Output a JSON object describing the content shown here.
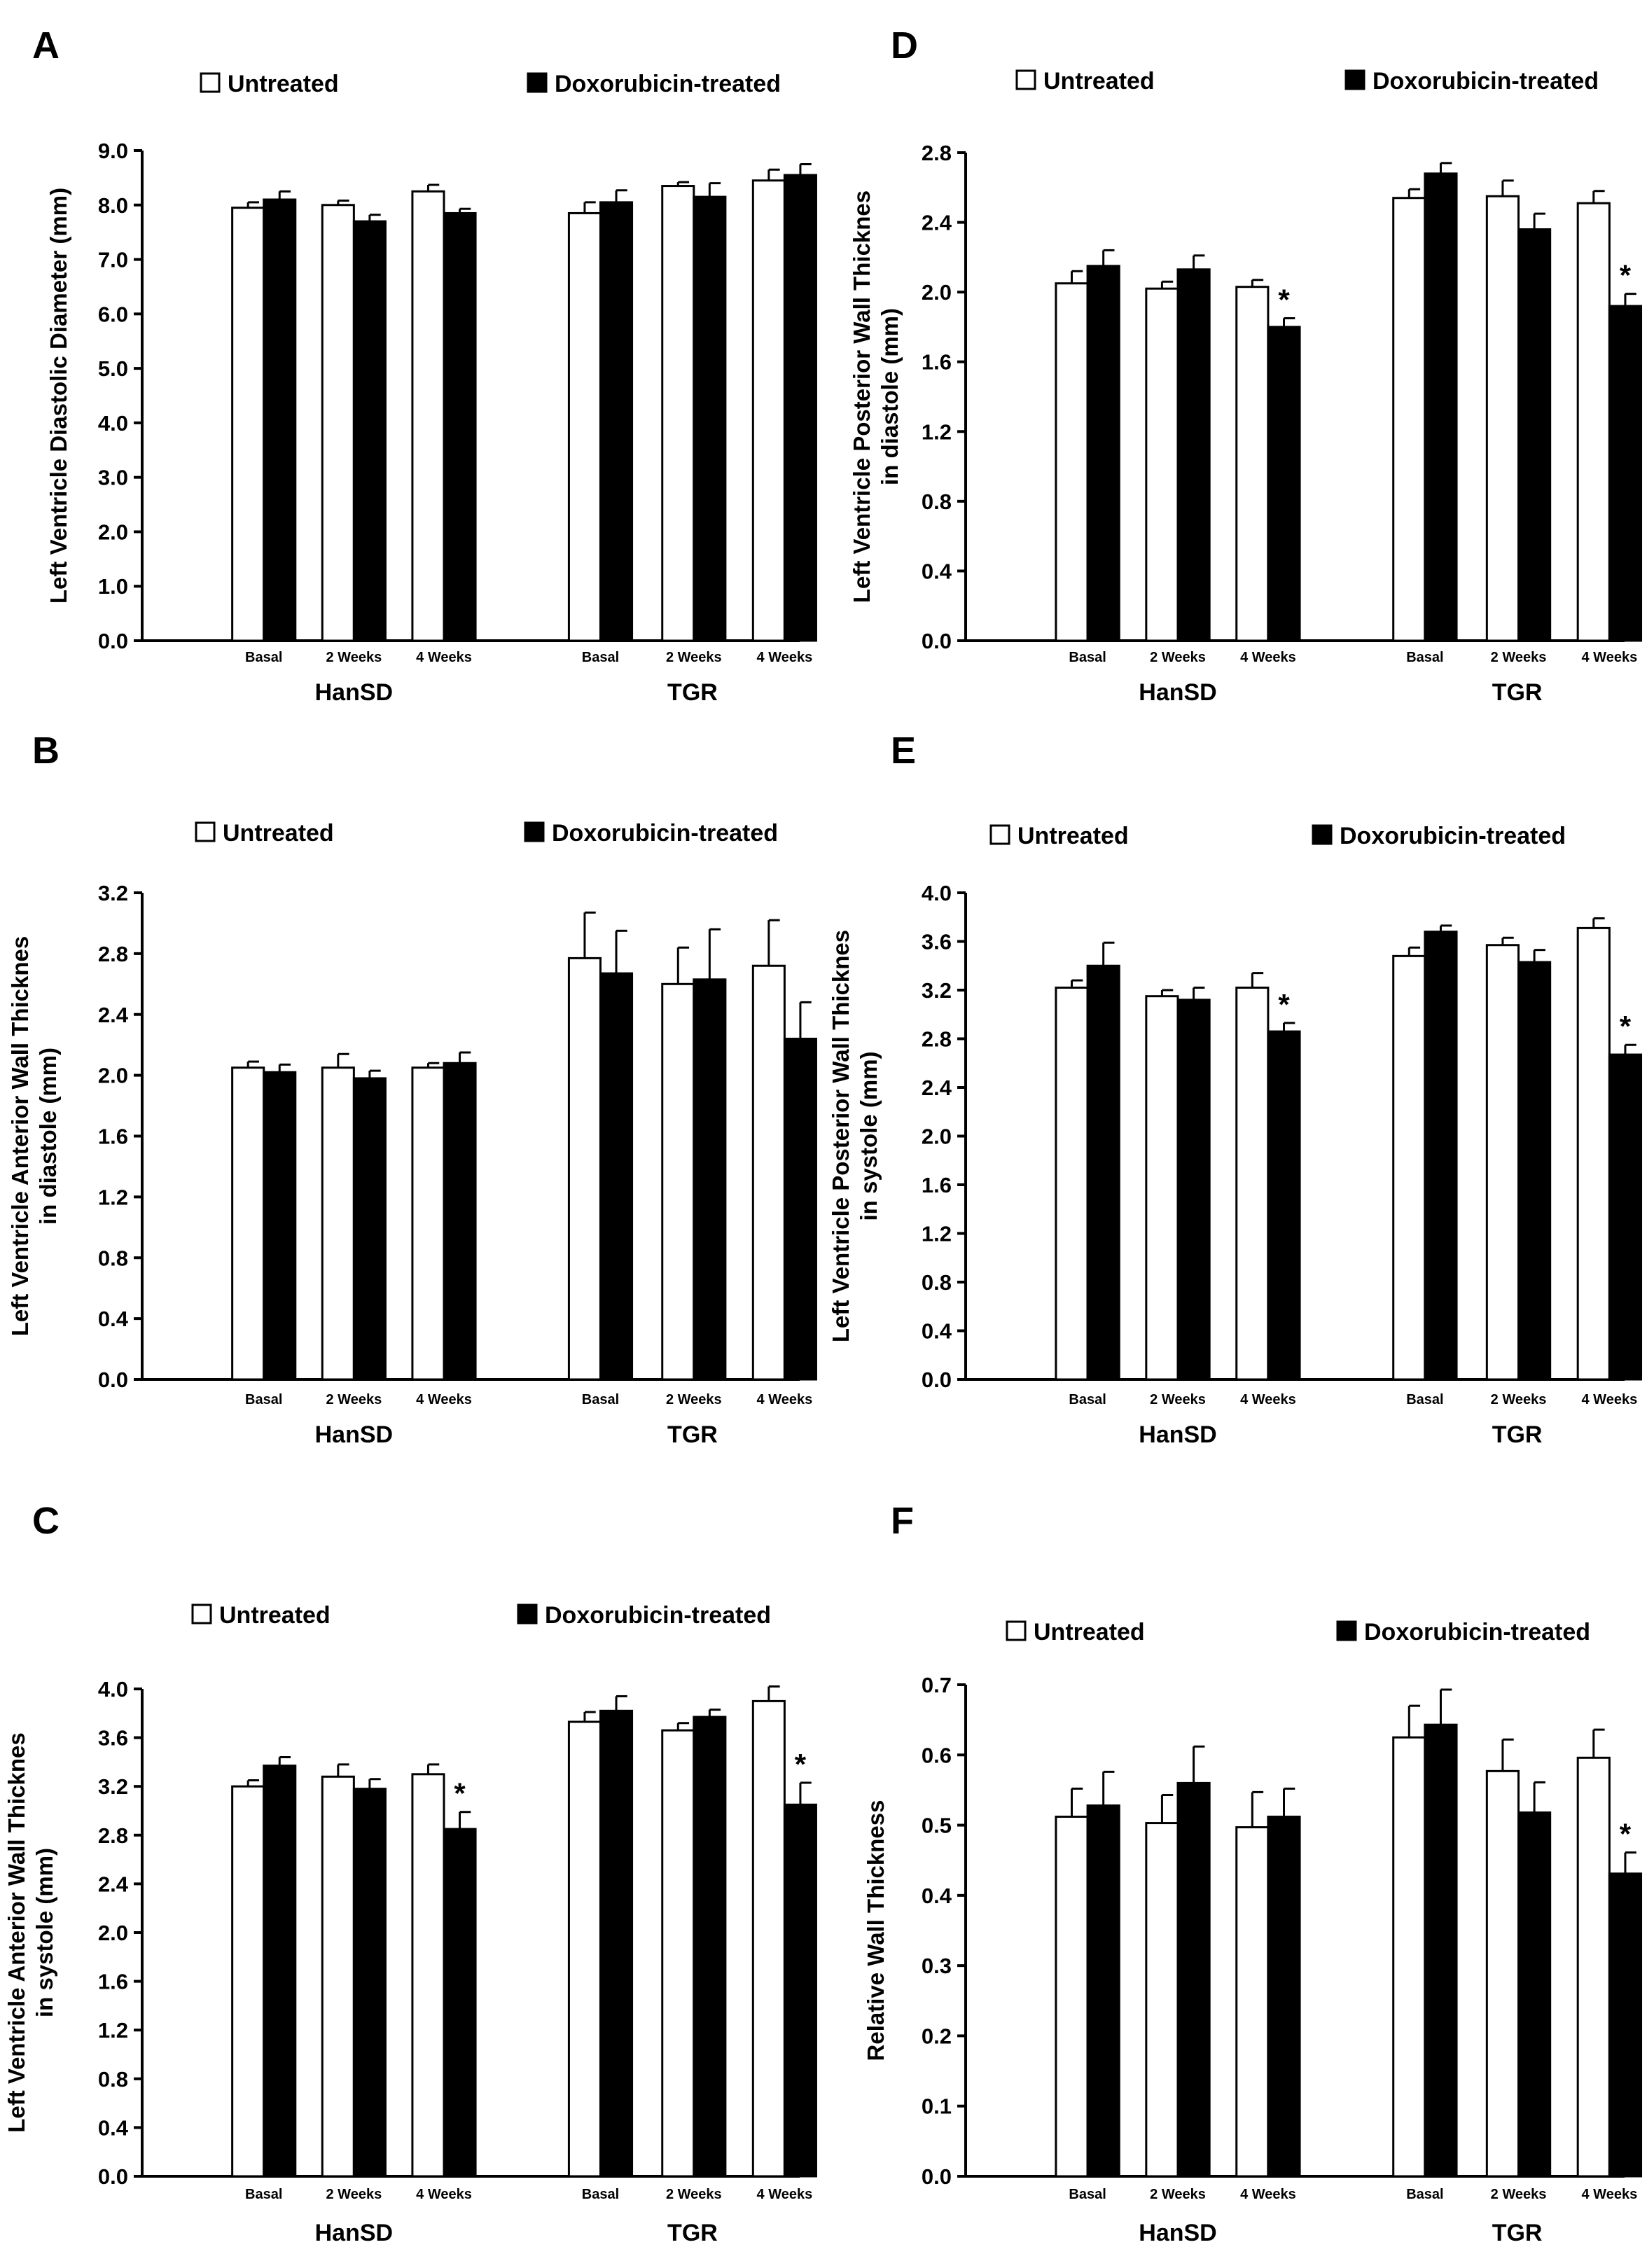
{
  "figure": {
    "legend": {
      "untreated": "Untreated",
      "treated": "Doxorubicin-treated"
    },
    "group_names": [
      "HanSD",
      "TGR"
    ],
    "timepoints": [
      "Basal",
      "2 Weeks",
      "4 Weeks"
    ],
    "significance_marker": "*",
    "colors": {
      "untreated_fill": "#ffffff",
      "treated_fill": "#000000",
      "stroke": "#000000"
    }
  },
  "chart_data": [
    {
      "panel": "A",
      "type": "bar",
      "ylabel": [
        "Left Ventricle Diastolic Diameter (mm)"
      ],
      "ylim": [
        0,
        9
      ],
      "yticks": [
        0.0,
        1.0,
        2.0,
        3.0,
        4.0,
        5.0,
        6.0,
        7.0,
        8.0,
        9.0
      ],
      "ytick_labels": [
        "0.0",
        "1.0",
        "2.0",
        "3.0",
        "4.0",
        "5.0",
        "6.0",
        "7.0",
        "8.0",
        "9.0"
      ],
      "categories": [
        "Basal",
        "2 Weeks",
        "4 Weeks",
        "Basal",
        "2 Weeks",
        "4 Weeks"
      ],
      "groups": [
        "HanSD",
        "TGR"
      ],
      "series": [
        {
          "name": "Untreated",
          "values": [
            7.95,
            8.0,
            8.25,
            7.85,
            8.35,
            8.45
          ],
          "errors": [
            0.1,
            0.08,
            0.12,
            0.2,
            0.07,
            0.2
          ]
        },
        {
          "name": "Doxorubicin-treated",
          "values": [
            8.1,
            7.7,
            7.85,
            8.05,
            8.15,
            8.55
          ],
          "errors": [
            0.15,
            0.12,
            0.08,
            0.22,
            0.25,
            0.2
          ]
        }
      ],
      "significant": []
    },
    {
      "panel": "B",
      "type": "bar",
      "ylabel": [
        "Left Ventricle Anterior Wall Thicknes",
        "in diastole (mm)"
      ],
      "ylim": [
        0,
        3.2
      ],
      "yticks": [
        0.0,
        0.4,
        0.8,
        1.2,
        1.6,
        2.0,
        2.4,
        2.8,
        3.2
      ],
      "ytick_labels": [
        "0.0",
        "0.4",
        "0.8",
        "1.2",
        "1.6",
        "2.0",
        "2.4",
        "2.8",
        "3.2"
      ],
      "categories": [
        "Basal",
        "2 Weeks",
        "4 Weeks",
        "Basal",
        "2 Weeks",
        "4 Weeks"
      ],
      "groups": [
        "HanSD",
        "TGR"
      ],
      "series": [
        {
          "name": "Untreated",
          "values": [
            2.05,
            2.05,
            2.05,
            2.77,
            2.6,
            2.72
          ],
          "errors": [
            0.04,
            0.09,
            0.03,
            0.3,
            0.24,
            0.3
          ]
        },
        {
          "name": "Doxorubicin-treated",
          "values": [
            2.02,
            1.98,
            2.08,
            2.67,
            2.63,
            2.24
          ],
          "errors": [
            0.05,
            0.05,
            0.07,
            0.28,
            0.33,
            0.24
          ]
        }
      ],
      "significant": []
    },
    {
      "panel": "C",
      "type": "bar",
      "ylabel": [
        "Left Ventricle Anterior Wall Thicknes",
        "in systole (mm)"
      ],
      "ylim": [
        0,
        4.0
      ],
      "yticks": [
        0.0,
        0.4,
        0.8,
        1.2,
        1.6,
        2.0,
        2.4,
        2.8,
        3.2,
        3.6,
        4.0
      ],
      "ytick_labels": [
        "0.0",
        "0.4",
        "0.8",
        "1.2",
        "1.6",
        "2.0",
        "2.4",
        "2.8",
        "3.2",
        "3.6",
        "4.0"
      ],
      "categories": [
        "Basal",
        "2 Weeks",
        "4 Weeks",
        "Basal",
        "2 Weeks",
        "4 Weeks"
      ],
      "groups": [
        "HanSD",
        "TGR"
      ],
      "series": [
        {
          "name": "Untreated",
          "values": [
            3.2,
            3.28,
            3.3,
            3.73,
            3.66,
            3.9
          ],
          "errors": [
            0.05,
            0.1,
            0.08,
            0.08,
            0.06,
            0.12
          ]
        },
        {
          "name": "Doxorubicin-treated",
          "values": [
            3.37,
            3.18,
            2.85,
            3.82,
            3.77,
            3.05
          ],
          "errors": [
            0.07,
            0.08,
            0.14,
            0.12,
            0.06,
            0.18
          ]
        }
      ],
      "significant": [
        2,
        5
      ]
    },
    {
      "panel": "D",
      "type": "bar",
      "ylabel": [
        "Left Ventricle Posterior Wall Thicknes",
        "in diastole (mm)"
      ],
      "ylim": [
        0,
        2.8
      ],
      "yticks": [
        0.0,
        0.4,
        0.8,
        1.2,
        1.6,
        2.0,
        2.4,
        2.8
      ],
      "ytick_labels": [
        "0.0",
        "0.4",
        "0.8",
        "1.2",
        "1.6",
        "2.0",
        "2.4",
        "2.8"
      ],
      "categories": [
        "Basal",
        "2 Weeks",
        "4 Weeks",
        "Basal",
        "2 Weeks",
        "4 Weeks"
      ],
      "groups": [
        "HanSD",
        "TGR"
      ],
      "series": [
        {
          "name": "Untreated",
          "values": [
            2.05,
            2.02,
            2.03,
            2.54,
            2.55,
            2.51
          ],
          "errors": [
            0.07,
            0.04,
            0.04,
            0.05,
            0.09,
            0.07
          ]
        },
        {
          "name": "Doxorubicin-treated",
          "values": [
            2.15,
            2.13,
            1.8,
            2.68,
            2.36,
            1.92
          ],
          "errors": [
            0.09,
            0.08,
            0.05,
            0.06,
            0.09,
            0.07
          ]
        }
      ],
      "significant": [
        2,
        5
      ]
    },
    {
      "panel": "E",
      "type": "bar",
      "ylabel": [
        "Left Ventricle Posterior Wall Thicknes",
        "in systole (mm)"
      ],
      "ylim": [
        0,
        4.0
      ],
      "yticks": [
        0.0,
        0.4,
        0.8,
        1.2,
        1.6,
        2.0,
        2.4,
        2.8,
        3.2,
        3.6,
        4.0
      ],
      "ytick_labels": [
        "0.0",
        "0.4",
        "0.8",
        "1.2",
        "1.6",
        "2.0",
        "2.4",
        "2.8",
        "3.2",
        "3.6",
        "4.0"
      ],
      "categories": [
        "Basal",
        "2 Weeks",
        "4 Weeks",
        "Basal",
        "2 Weeks",
        "4 Weeks"
      ],
      "groups": [
        "HanSD",
        "TGR"
      ],
      "series": [
        {
          "name": "Untreated",
          "values": [
            3.22,
            3.15,
            3.22,
            3.48,
            3.57,
            3.71
          ],
          "errors": [
            0.06,
            0.05,
            0.12,
            0.07,
            0.06,
            0.08
          ]
        },
        {
          "name": "Doxorubicin-treated",
          "values": [
            3.4,
            3.12,
            2.86,
            3.68,
            3.43,
            2.67
          ],
          "errors": [
            0.19,
            0.1,
            0.07,
            0.05,
            0.1,
            0.08
          ]
        }
      ],
      "significant": [
        2,
        5
      ]
    },
    {
      "panel": "F",
      "type": "bar",
      "ylabel": [
        "Relative Wall Thickness"
      ],
      "ylim": [
        0,
        0.7
      ],
      "yticks": [
        0.0,
        0.1,
        0.2,
        0.3,
        0.4,
        0.5,
        0.6,
        0.7
      ],
      "ytick_labels": [
        "0.0",
        "0.1",
        "0.2",
        "0.3",
        "0.4",
        "0.5",
        "0.6",
        "0.7"
      ],
      "categories": [
        "Basal",
        "2 Weeks",
        "4 Weeks",
        "Basal",
        "2 Weeks",
        "4 Weeks"
      ],
      "groups": [
        "HanSD",
        "TGR"
      ],
      "series": [
        {
          "name": "Untreated",
          "values": [
            0.512,
            0.503,
            0.497,
            0.625,
            0.577,
            0.596
          ],
          "errors": [
            0.04,
            0.04,
            0.05,
            0.045,
            0.045,
            0.04
          ]
        },
        {
          "name": "Doxorubicin-treated",
          "values": [
            0.528,
            0.56,
            0.512,
            0.643,
            0.518,
            0.431
          ],
          "errors": [
            0.048,
            0.052,
            0.04,
            0.05,
            0.043,
            0.03
          ]
        }
      ],
      "significant": [
        5
      ]
    }
  ]
}
